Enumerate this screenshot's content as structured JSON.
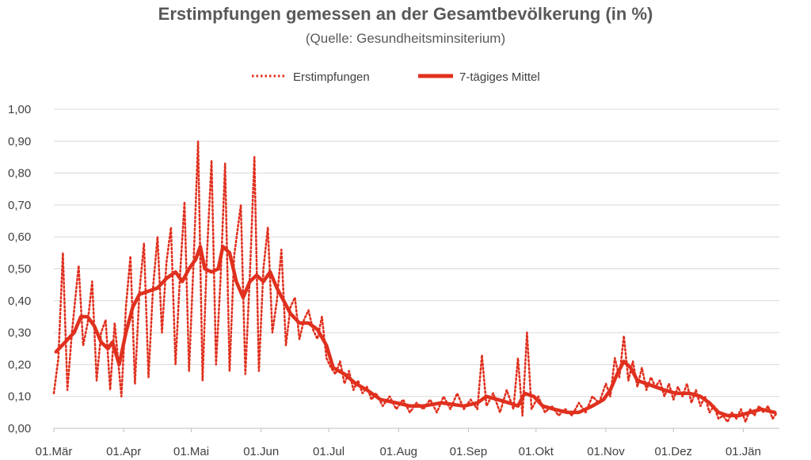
{
  "chart_data": {
    "type": "line",
    "title": "Erstimpfungen gemessen an der Gesamtbevölkerung (in %)",
    "subtitle": "(Quelle: Gesundheitsminsiterium)",
    "ylim": [
      0,
      1.0
    ],
    "yticks": [
      "0,00",
      "0,10",
      "0,20",
      "0,30",
      "0,40",
      "0,50",
      "0,60",
      "0,70",
      "0,80",
      "0,90",
      "1,00"
    ],
    "xlim": [
      "2021-03-01",
      "2022-01-17"
    ],
    "xticks": [
      {
        "date": "2021-03-01",
        "label": "01.Mär"
      },
      {
        "date": "2021-04-01",
        "label": "01.Apr"
      },
      {
        "date": "2021-05-01",
        "label": "01.Mai"
      },
      {
        "date": "2021-06-01",
        "label": "01.Jun"
      },
      {
        "date": "2021-07-01",
        "label": "01.Jul"
      },
      {
        "date": "2021-08-01",
        "label": "01.Aug"
      },
      {
        "date": "2021-09-01",
        "label": "01.Sep"
      },
      {
        "date": "2021-10-01",
        "label": "01.Okt"
      },
      {
        "date": "2021-11-01",
        "label": "01.Nov"
      },
      {
        "date": "2021-12-01",
        "label": "01.Dez"
      },
      {
        "date": "2022-01-01",
        "label": "01.Jän"
      }
    ],
    "grid": true,
    "legend_position": "top",
    "series": [
      {
        "name": "Erstimpfungen",
        "style": "dotted",
        "color": "#e0301e",
        "points": [
          [
            "2021-03-01",
            0.11
          ],
          [
            "2021-03-03",
            0.22
          ],
          [
            "2021-03-05",
            0.55
          ],
          [
            "2021-03-07",
            0.12
          ],
          [
            "2021-03-09",
            0.3
          ],
          [
            "2021-03-12",
            0.51
          ],
          [
            "2021-03-14",
            0.26
          ],
          [
            "2021-03-16",
            0.33
          ],
          [
            "2021-03-18",
            0.46
          ],
          [
            "2021-03-20",
            0.15
          ],
          [
            "2021-03-22",
            0.3
          ],
          [
            "2021-03-24",
            0.34
          ],
          [
            "2021-03-26",
            0.12
          ],
          [
            "2021-03-28",
            0.33
          ],
          [
            "2021-03-31",
            0.1
          ],
          [
            "2021-04-02",
            0.38
          ],
          [
            "2021-04-04",
            0.54
          ],
          [
            "2021-04-06",
            0.14
          ],
          [
            "2021-04-08",
            0.43
          ],
          [
            "2021-04-10",
            0.58
          ],
          [
            "2021-04-12",
            0.16
          ],
          [
            "2021-04-14",
            0.44
          ],
          [
            "2021-04-16",
            0.6
          ],
          [
            "2021-04-18",
            0.3
          ],
          [
            "2021-04-20",
            0.52
          ],
          [
            "2021-04-22",
            0.63
          ],
          [
            "2021-04-24",
            0.2
          ],
          [
            "2021-04-26",
            0.48
          ],
          [
            "2021-04-28",
            0.71
          ],
          [
            "2021-04-30",
            0.18
          ],
          [
            "2021-05-02",
            0.52
          ],
          [
            "2021-05-04",
            0.9
          ],
          [
            "2021-05-06",
            0.15
          ],
          [
            "2021-05-08",
            0.55
          ],
          [
            "2021-05-10",
            0.84
          ],
          [
            "2021-05-12",
            0.2
          ],
          [
            "2021-05-14",
            0.47
          ],
          [
            "2021-05-16",
            0.83
          ],
          [
            "2021-05-18",
            0.18
          ],
          [
            "2021-05-20",
            0.54
          ],
          [
            "2021-05-23",
            0.7
          ],
          [
            "2021-05-25",
            0.17
          ],
          [
            "2021-05-27",
            0.48
          ],
          [
            "2021-05-29",
            0.85
          ],
          [
            "2021-05-31",
            0.18
          ],
          [
            "2021-06-02",
            0.5
          ],
          [
            "2021-06-04",
            0.63
          ],
          [
            "2021-06-06",
            0.3
          ],
          [
            "2021-06-08",
            0.4
          ],
          [
            "2021-06-10",
            0.56
          ],
          [
            "2021-06-12",
            0.26
          ],
          [
            "2021-06-14",
            0.38
          ],
          [
            "2021-06-16",
            0.41
          ],
          [
            "2021-06-18",
            0.28
          ],
          [
            "2021-06-20",
            0.34
          ],
          [
            "2021-06-22",
            0.37
          ],
          [
            "2021-06-24",
            0.31
          ],
          [
            "2021-06-26",
            0.28
          ],
          [
            "2021-06-28",
            0.35
          ],
          [
            "2021-06-30",
            0.22
          ],
          [
            "2021-07-02",
            0.19
          ],
          [
            "2021-07-04",
            0.17
          ],
          [
            "2021-07-06",
            0.21
          ],
          [
            "2021-07-08",
            0.14
          ],
          [
            "2021-07-10",
            0.18
          ],
          [
            "2021-07-12",
            0.12
          ],
          [
            "2021-07-14",
            0.15
          ],
          [
            "2021-07-16",
            0.11
          ],
          [
            "2021-07-18",
            0.13
          ],
          [
            "2021-07-20",
            0.09
          ],
          [
            "2021-07-22",
            0.11
          ],
          [
            "2021-07-25",
            0.07
          ],
          [
            "2021-07-28",
            0.1
          ],
          [
            "2021-07-31",
            0.06
          ],
          [
            "2021-08-03",
            0.09
          ],
          [
            "2021-08-06",
            0.05
          ],
          [
            "2021-08-09",
            0.08
          ],
          [
            "2021-08-12",
            0.06
          ],
          [
            "2021-08-15",
            0.09
          ],
          [
            "2021-08-18",
            0.05
          ],
          [
            "2021-08-21",
            0.1
          ],
          [
            "2021-08-24",
            0.06
          ],
          [
            "2021-08-27",
            0.11
          ],
          [
            "2021-08-30",
            0.06
          ],
          [
            "2021-09-02",
            0.09
          ],
          [
            "2021-09-05",
            0.06
          ],
          [
            "2021-09-07",
            0.23
          ],
          [
            "2021-09-09",
            0.07
          ],
          [
            "2021-09-12",
            0.11
          ],
          [
            "2021-09-15",
            0.05
          ],
          [
            "2021-09-18",
            0.12
          ],
          [
            "2021-09-21",
            0.06
          ],
          [
            "2021-09-23",
            0.22
          ],
          [
            "2021-09-25",
            0.04
          ],
          [
            "2021-09-27",
            0.3
          ],
          [
            "2021-09-29",
            0.06
          ],
          [
            "2021-10-02",
            0.1
          ],
          [
            "2021-10-05",
            0.05
          ],
          [
            "2021-10-08",
            0.07
          ],
          [
            "2021-10-11",
            0.04
          ],
          [
            "2021-10-14",
            0.06
          ],
          [
            "2021-10-17",
            0.04
          ],
          [
            "2021-10-20",
            0.08
          ],
          [
            "2021-10-23",
            0.05
          ],
          [
            "2021-10-26",
            0.1
          ],
          [
            "2021-10-29",
            0.08
          ],
          [
            "2021-11-01",
            0.14
          ],
          [
            "2021-11-03",
            0.1
          ],
          [
            "2021-11-05",
            0.22
          ],
          [
            "2021-11-07",
            0.16
          ],
          [
            "2021-11-09",
            0.29
          ],
          [
            "2021-11-11",
            0.15
          ],
          [
            "2021-11-13",
            0.21
          ],
          [
            "2021-11-15",
            0.13
          ],
          [
            "2021-11-17",
            0.19
          ],
          [
            "2021-11-19",
            0.12
          ],
          [
            "2021-11-21",
            0.16
          ],
          [
            "2021-11-23",
            0.13
          ],
          [
            "2021-11-25",
            0.15
          ],
          [
            "2021-11-27",
            0.1
          ],
          [
            "2021-11-29",
            0.14
          ],
          [
            "2021-12-01",
            0.09
          ],
          [
            "2021-12-03",
            0.13
          ],
          [
            "2021-12-05",
            0.1
          ],
          [
            "2021-12-07",
            0.14
          ],
          [
            "2021-12-09",
            0.08
          ],
          [
            "2021-12-11",
            0.12
          ],
          [
            "2021-12-13",
            0.07
          ],
          [
            "2021-12-15",
            0.1
          ],
          [
            "2021-12-17",
            0.05
          ],
          [
            "2021-12-19",
            0.07
          ],
          [
            "2021-12-21",
            0.03
          ],
          [
            "2021-12-23",
            0.04
          ],
          [
            "2021-12-25",
            0.02
          ],
          [
            "2021-12-27",
            0.05
          ],
          [
            "2021-12-29",
            0.03
          ],
          [
            "2021-12-31",
            0.06
          ],
          [
            "2022-01-02",
            0.02
          ],
          [
            "2022-01-04",
            0.06
          ],
          [
            "2022-01-06",
            0.04
          ],
          [
            "2022-01-08",
            0.07
          ],
          [
            "2022-01-10",
            0.05
          ],
          [
            "2022-01-12",
            0.07
          ],
          [
            "2022-01-14",
            0.03
          ],
          [
            "2022-01-16",
            0.05
          ]
        ]
      },
      {
        "name": "7-tägiges Mittel",
        "style": "solid",
        "color": "#e0301e",
        "points": [
          [
            "2021-03-02",
            0.24
          ],
          [
            "2021-03-06",
            0.27
          ],
          [
            "2021-03-10",
            0.3
          ],
          [
            "2021-03-13",
            0.35
          ],
          [
            "2021-03-16",
            0.35
          ],
          [
            "2021-03-19",
            0.32
          ],
          [
            "2021-03-22",
            0.27
          ],
          [
            "2021-03-25",
            0.25
          ],
          [
            "2021-03-27",
            0.27
          ],
          [
            "2021-03-30",
            0.2
          ],
          [
            "2021-04-02",
            0.3
          ],
          [
            "2021-04-05",
            0.38
          ],
          [
            "2021-04-08",
            0.42
          ],
          [
            "2021-04-12",
            0.43
          ],
          [
            "2021-04-16",
            0.44
          ],
          [
            "2021-04-20",
            0.47
          ],
          [
            "2021-04-24",
            0.49
          ],
          [
            "2021-04-27",
            0.46
          ],
          [
            "2021-04-30",
            0.5
          ],
          [
            "2021-05-03",
            0.53
          ],
          [
            "2021-05-05",
            0.57
          ],
          [
            "2021-05-07",
            0.5
          ],
          [
            "2021-05-10",
            0.49
          ],
          [
            "2021-05-13",
            0.5
          ],
          [
            "2021-05-15",
            0.57
          ],
          [
            "2021-05-18",
            0.55
          ],
          [
            "2021-05-21",
            0.46
          ],
          [
            "2021-05-24",
            0.41
          ],
          [
            "2021-05-27",
            0.46
          ],
          [
            "2021-05-30",
            0.48
          ],
          [
            "2021-06-02",
            0.46
          ],
          [
            "2021-06-05",
            0.49
          ],
          [
            "2021-06-08",
            0.44
          ],
          [
            "2021-06-11",
            0.4
          ],
          [
            "2021-06-14",
            0.36
          ],
          [
            "2021-06-18",
            0.33
          ],
          [
            "2021-06-22",
            0.33
          ],
          [
            "2021-06-26",
            0.31
          ],
          [
            "2021-06-30",
            0.26
          ],
          [
            "2021-07-03",
            0.19
          ],
          [
            "2021-07-08",
            0.17
          ],
          [
            "2021-07-13",
            0.14
          ],
          [
            "2021-07-18",
            0.12
          ],
          [
            "2021-07-24",
            0.09
          ],
          [
            "2021-07-31",
            0.08
          ],
          [
            "2021-08-06",
            0.07
          ],
          [
            "2021-08-12",
            0.07
          ],
          [
            "2021-08-20",
            0.08
          ],
          [
            "2021-08-30",
            0.07
          ],
          [
            "2021-09-05",
            0.08
          ],
          [
            "2021-09-09",
            0.1
          ],
          [
            "2021-09-14",
            0.09
          ],
          [
            "2021-09-19",
            0.08
          ],
          [
            "2021-09-23",
            0.07
          ],
          [
            "2021-09-26",
            0.11
          ],
          [
            "2021-09-30",
            0.1
          ],
          [
            "2021-10-04",
            0.07
          ],
          [
            "2021-10-09",
            0.06
          ],
          [
            "2021-10-15",
            0.05
          ],
          [
            "2021-10-20",
            0.05
          ],
          [
            "2021-10-26",
            0.07
          ],
          [
            "2021-10-31",
            0.09
          ],
          [
            "2021-11-03",
            0.12
          ],
          [
            "2021-11-06",
            0.17
          ],
          [
            "2021-11-09",
            0.21
          ],
          [
            "2021-11-12",
            0.19
          ],
          [
            "2021-11-15",
            0.15
          ],
          [
            "2021-11-19",
            0.14
          ],
          [
            "2021-11-23",
            0.13
          ],
          [
            "2021-11-27",
            0.12
          ],
          [
            "2021-12-02",
            0.11
          ],
          [
            "2021-12-08",
            0.11
          ],
          [
            "2021-12-13",
            0.1
          ],
          [
            "2021-12-17",
            0.08
          ],
          [
            "2021-12-21",
            0.05
          ],
          [
            "2021-12-25",
            0.04
          ],
          [
            "2021-12-30",
            0.04
          ],
          [
            "2022-01-04",
            0.05
          ],
          [
            "2022-01-09",
            0.06
          ],
          [
            "2022-01-15",
            0.05
          ]
        ]
      }
    ]
  }
}
